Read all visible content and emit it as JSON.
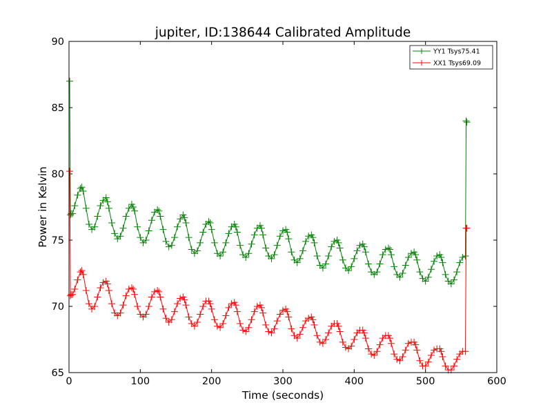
{
  "chart_data": {
    "type": "line",
    "title": "jupiter, ID:138644 Calibrated Amplitude",
    "xlabel": "Time (seconds)",
    "ylabel": "Power in Kelvin",
    "xlim": [
      0,
      600
    ],
    "ylim": [
      65,
      90
    ],
    "xticks": [
      0,
      100,
      200,
      300,
      400,
      500,
      600
    ],
    "yticks": [
      65,
      70,
      75,
      80,
      85,
      90
    ],
    "grid": false,
    "legend_position": "top-right",
    "series": [
      {
        "name": "YY1 Tsys75.41",
        "color": "#008000",
        "marker": "+",
        "x": [
          1,
          2,
          3,
          5,
          8,
          12,
          16,
          18,
          20,
          24,
          28,
          32,
          36,
          40,
          44,
          48,
          52,
          54,
          56,
          60,
          64,
          68,
          72,
          76,
          80,
          84,
          88,
          90,
          92,
          96,
          100,
          104,
          108,
          112,
          116,
          120,
          124,
          126,
          128,
          132,
          136,
          140,
          144,
          148,
          152,
          156,
          160,
          162,
          164,
          168,
          172,
          176,
          180,
          184,
          188,
          192,
          196,
          198,
          200,
          204,
          208,
          212,
          216,
          220,
          224,
          228,
          232,
          234,
          236,
          240,
          244,
          248,
          252,
          256,
          260,
          264,
          268,
          270,
          272,
          276,
          280,
          284,
          288,
          292,
          296,
          300,
          304,
          306,
          308,
          312,
          316,
          320,
          324,
          328,
          332,
          336,
          340,
          342,
          344,
          348,
          352,
          356,
          360,
          364,
          368,
          372,
          376,
          378,
          380,
          384,
          388,
          392,
          396,
          400,
          404,
          408,
          412,
          414,
          416,
          420,
          424,
          428,
          432,
          436,
          440,
          444,
          448,
          450,
          452,
          456,
          460,
          464,
          468,
          472,
          476,
          480,
          484,
          486,
          488,
          492,
          496,
          500,
          504,
          508,
          512,
          516,
          520,
          522,
          524,
          528,
          532,
          536,
          540,
          544,
          548,
          552,
          556,
          557,
          558
        ],
        "y": [
          87.0,
          76.9,
          77.0,
          77.0,
          77.6,
          78.4,
          78.9,
          79.0,
          78.7,
          77.4,
          76.2,
          75.8,
          76.0,
          76.8,
          77.6,
          78.0,
          78.2,
          77.9,
          77.4,
          76.3,
          75.5,
          75.1,
          75.3,
          75.9,
          76.8,
          77.4,
          77.7,
          77.5,
          77.2,
          76.0,
          75.2,
          74.8,
          75.0,
          75.7,
          76.5,
          77.1,
          77.3,
          77.2,
          76.8,
          75.8,
          74.9,
          74.5,
          74.6,
          75.2,
          76.0,
          76.6,
          76.9,
          76.7,
          76.3,
          75.2,
          74.3,
          74.0,
          74.2,
          74.8,
          75.6,
          76.2,
          76.4,
          76.3,
          75.8,
          74.8,
          74.0,
          73.8,
          74.1,
          74.8,
          75.5,
          76.0,
          76.2,
          76.0,
          75.6,
          74.6,
          73.9,
          73.7,
          74.0,
          74.7,
          75.4,
          75.9,
          76.1,
          75.9,
          75.4,
          74.4,
          73.8,
          73.6,
          73.9,
          74.6,
          75.3,
          75.7,
          75.8,
          75.6,
          75.1,
          74.1,
          73.5,
          73.3,
          73.6,
          74.2,
          74.9,
          75.3,
          75.4,
          75.2,
          74.8,
          73.8,
          73.1,
          72.9,
          73.2,
          73.8,
          74.5,
          74.9,
          75.0,
          74.8,
          74.4,
          73.5,
          72.9,
          72.7,
          73.0,
          73.6,
          74.2,
          74.6,
          74.7,
          74.5,
          74.1,
          73.2,
          72.6,
          72.4,
          72.6,
          73.2,
          73.9,
          74.3,
          74.4,
          74.3,
          73.9,
          73.0,
          72.4,
          72.2,
          72.5,
          73.1,
          73.7,
          74.0,
          74.1,
          73.9,
          73.5,
          72.6,
          72.1,
          71.9,
          72.2,
          72.8,
          73.4,
          73.8,
          73.9,
          73.7,
          73.3,
          72.4,
          71.9,
          71.7,
          72.0,
          72.6,
          73.3,
          73.7,
          73.8,
          84.0,
          83.9
        ]
      },
      {
        "name": "XX1 Tsys69.09",
        "color": "#ff0000",
        "marker": "+",
        "x": [
          1,
          2,
          3,
          5,
          8,
          12,
          16,
          18,
          20,
          24,
          28,
          32,
          36,
          40,
          44,
          48,
          52,
          54,
          56,
          60,
          64,
          68,
          72,
          76,
          80,
          84,
          88,
          90,
          92,
          96,
          100,
          104,
          108,
          112,
          116,
          120,
          124,
          126,
          128,
          132,
          136,
          140,
          144,
          148,
          152,
          156,
          160,
          162,
          164,
          168,
          172,
          176,
          180,
          184,
          188,
          192,
          196,
          198,
          200,
          204,
          208,
          212,
          216,
          220,
          224,
          228,
          232,
          234,
          236,
          240,
          244,
          248,
          252,
          256,
          260,
          264,
          268,
          270,
          272,
          276,
          280,
          284,
          288,
          292,
          296,
          300,
          304,
          306,
          308,
          312,
          316,
          320,
          324,
          328,
          332,
          336,
          340,
          342,
          344,
          348,
          352,
          356,
          360,
          364,
          368,
          372,
          376,
          378,
          380,
          384,
          388,
          392,
          396,
          400,
          404,
          408,
          412,
          414,
          416,
          420,
          424,
          428,
          432,
          436,
          440,
          444,
          448,
          450,
          452,
          456,
          460,
          464,
          468,
          472,
          476,
          480,
          484,
          486,
          488,
          492,
          496,
          500,
          504,
          508,
          512,
          516,
          520,
          522,
          524,
          528,
          532,
          536,
          540,
          544,
          548,
          552,
          556,
          557,
          558
        ],
        "y": [
          80.2,
          70.8,
          70.9,
          70.9,
          71.3,
          72.0,
          72.6,
          72.7,
          72.4,
          71.2,
          70.2,
          69.8,
          70.0,
          70.7,
          71.4,
          71.8,
          71.9,
          71.7,
          71.2,
          70.2,
          69.5,
          69.3,
          69.5,
          70.1,
          70.8,
          71.3,
          71.4,
          71.3,
          70.9,
          70.0,
          69.4,
          69.2,
          69.4,
          70.0,
          70.7,
          71.1,
          71.2,
          71.1,
          70.7,
          69.8,
          69.1,
          68.8,
          69.0,
          69.6,
          70.2,
          70.6,
          70.7,
          70.5,
          70.1,
          69.2,
          68.7,
          68.5,
          68.8,
          69.4,
          70.0,
          70.4,
          70.4,
          70.2,
          69.8,
          69.0,
          68.5,
          68.4,
          68.7,
          69.3,
          69.9,
          70.2,
          70.3,
          70.1,
          69.6,
          68.7,
          68.2,
          68.1,
          68.4,
          69.0,
          69.6,
          70.0,
          70.1,
          69.9,
          69.5,
          68.6,
          68.1,
          68.0,
          68.3,
          68.9,
          69.4,
          69.7,
          69.8,
          69.6,
          69.2,
          68.3,
          67.8,
          67.6,
          67.9,
          68.4,
          68.9,
          69.1,
          69.2,
          69.0,
          68.6,
          67.8,
          67.3,
          67.2,
          67.5,
          68.0,
          68.5,
          68.7,
          68.7,
          68.5,
          68.1,
          67.3,
          66.9,
          66.8,
          67.0,
          67.5,
          68.0,
          68.2,
          68.2,
          68.0,
          67.6,
          66.8,
          66.4,
          66.3,
          66.6,
          67.1,
          67.6,
          67.8,
          67.8,
          67.6,
          67.2,
          66.4,
          66.0,
          65.9,
          66.2,
          66.7,
          67.2,
          67.3,
          67.3,
          67.1,
          66.7,
          65.9,
          65.5,
          65.5,
          65.8,
          66.3,
          66.7,
          66.8,
          66.8,
          66.6,
          66.2,
          65.5,
          65.2,
          65.2,
          65.5,
          66.0,
          66.4,
          66.6,
          66.6,
          75.9,
          75.9
        ]
      }
    ]
  }
}
